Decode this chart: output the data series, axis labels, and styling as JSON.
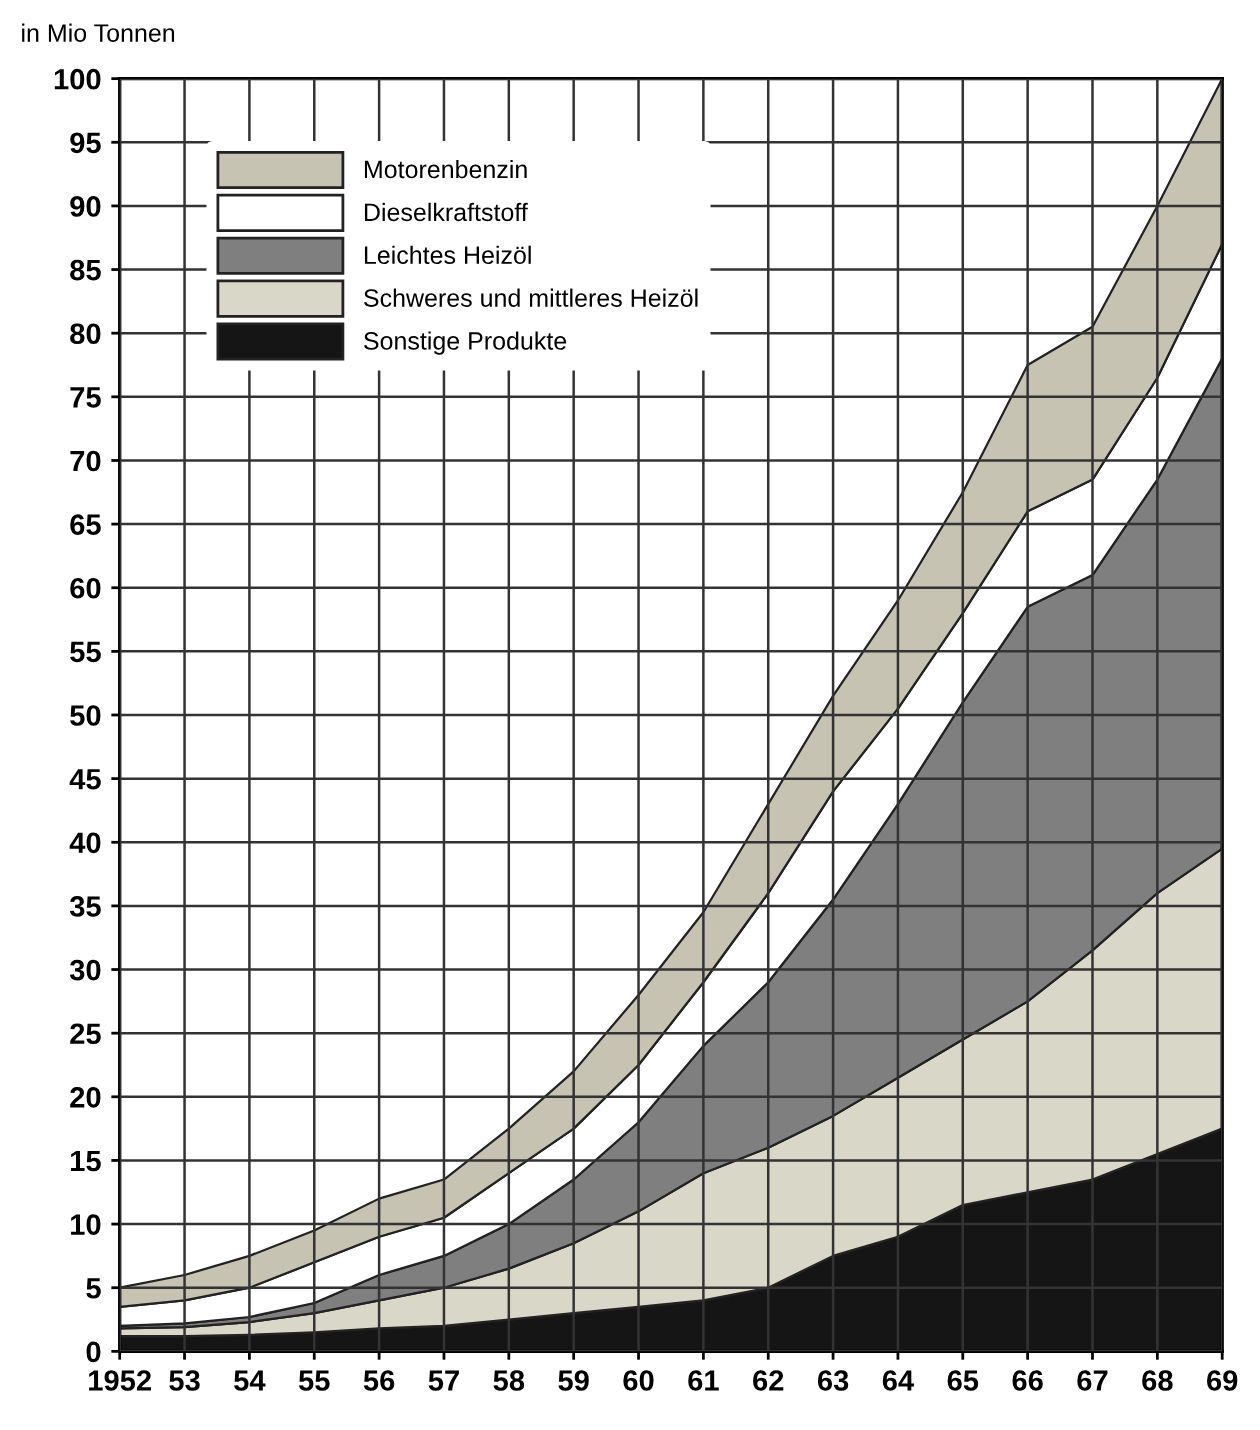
{
  "chart_data": {
    "type": "area",
    "stacked": true,
    "ylabel": "in Mio Tonnen",
    "x": [
      1952,
      1953,
      1954,
      1955,
      1956,
      1957,
      1958,
      1959,
      1960,
      1961,
      1962,
      1963,
      1964,
      1965,
      1966,
      1967,
      1968,
      1969
    ],
    "xlim": [
      1952,
      1969
    ],
    "xticks": [
      {
        "value": 1952,
        "label": "1952"
      },
      {
        "value": 1953,
        "label": "53"
      },
      {
        "value": 1954,
        "label": "54"
      },
      {
        "value": 1955,
        "label": "55"
      },
      {
        "value": 1956,
        "label": "56"
      },
      {
        "value": 1957,
        "label": "57"
      },
      {
        "value": 1958,
        "label": "58"
      },
      {
        "value": 1959,
        "label": "59"
      },
      {
        "value": 1960,
        "label": "60"
      },
      {
        "value": 1961,
        "label": "61"
      },
      {
        "value": 1962,
        "label": "62"
      },
      {
        "value": 1963,
        "label": "63"
      },
      {
        "value": 1964,
        "label": "64"
      },
      {
        "value": 1965,
        "label": "65"
      },
      {
        "value": 1966,
        "label": "66"
      },
      {
        "value": 1967,
        "label": "67"
      },
      {
        "value": 1968,
        "label": "68"
      },
      {
        "value": 1969,
        "label": "69"
      }
    ],
    "ylim": [
      0,
      100
    ],
    "yticks": [
      0,
      5,
      10,
      15,
      20,
      25,
      30,
      35,
      40,
      45,
      50,
      55,
      60,
      65,
      70,
      75,
      80,
      85,
      90,
      95,
      100
    ],
    "grid": true,
    "legend": "top left",
    "series": [
      {
        "name": "Sonstige Produkte",
        "color": "#151515",
        "values": [
          1.2,
          1.2,
          1.3,
          1.5,
          1.8,
          2,
          2.5,
          3,
          3.5,
          4,
          5,
          7.5,
          9,
          11.5,
          12.5,
          13.5,
          15.5,
          17.5
        ]
      },
      {
        "name": "Schweres und mittleres Heizöl",
        "color": "#d9d8c8",
        "values": [
          0.6,
          0.7,
          1.0,
          1.5,
          2.2,
          3,
          4,
          5.5,
          7.5,
          10,
          11,
          11,
          12.5,
          13,
          15,
          18,
          20.5,
          22
        ]
      },
      {
        "name": "Leichtes Heizöl",
        "color": "#7f7f7f",
        "values": [
          0.2,
          0.3,
          0.4,
          0.8,
          2,
          2.5,
          3.5,
          5,
          7,
          10,
          13,
          17,
          21.5,
          26.5,
          31,
          29.5,
          32.5,
          38.5
        ]
      },
      {
        "name": "Dieselkraftstoff",
        "color": "#ffffff",
        "values": [
          1.5,
          1.8,
          2.3,
          3.2,
          3,
          3,
          4,
          4,
          4.5,
          5,
          7,
          8.5,
          7.5,
          7,
          7.5,
          7.5,
          8,
          9
        ]
      },
      {
        "name": "Motorenbenzin",
        "color": "#c6c3b3",
        "values": [
          1.5,
          2,
          2.5,
          2.5,
          3,
          3,
          3.5,
          4.5,
          5.5,
          5.5,
          7,
          7.5,
          8.5,
          9.5,
          11.5,
          12,
          13.5,
          13
        ]
      }
    ]
  }
}
